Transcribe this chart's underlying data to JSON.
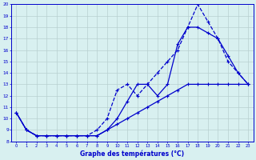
{
  "title": "Graphe des températures (°C)",
  "x_values": [
    0,
    1,
    2,
    3,
    4,
    5,
    6,
    7,
    8,
    9,
    10,
    11,
    12,
    13,
    14,
    15,
    16,
    17,
    18,
    19,
    20,
    21,
    22,
    23
  ],
  "line_dashed": [
    10.5,
    9.0,
    8.5,
    8.5,
    8.5,
    8.5,
    8.5,
    8.5,
    9.0,
    10.0,
    12.5,
    13.0,
    12.0,
    13.0,
    14.0,
    15.0,
    16.0,
    18.0,
    20.0,
    18.5,
    17.0,
    15.0,
    14.0,
    13.0
  ],
  "line_solid1": [
    10.5,
    9.0,
    8.5,
    8.5,
    8.5,
    8.5,
    8.5,
    8.5,
    8.5,
    9.0,
    10.0,
    11.5,
    13.0,
    13.0,
    12.0,
    13.0,
    16.5,
    18.0,
    18.0,
    17.5,
    17.0,
    15.5,
    14.0,
    13.0
  ],
  "line_solid2": [
    10.5,
    9.0,
    8.5,
    8.5,
    8.5,
    8.5,
    8.5,
    8.5,
    8.5,
    9.0,
    9.5,
    10.0,
    10.5,
    11.0,
    11.5,
    12.0,
    12.5,
    13.0,
    13.0,
    13.0,
    13.0,
    13.0,
    13.0,
    13.0
  ],
  "line_color": "#0000cc",
  "bg_color": "#d8f0f0",
  "grid_color": "#b8d0d0",
  "ylim": [
    8,
    20
  ],
  "xlim": [
    -0.5,
    23.5
  ],
  "ytick_vals": [
    8,
    9,
    10,
    11,
    12,
    13,
    14,
    15,
    16,
    17,
    18,
    19,
    20
  ],
  "xtick_vals": [
    0,
    1,
    2,
    3,
    4,
    5,
    6,
    7,
    8,
    9,
    10,
    11,
    12,
    13,
    14,
    15,
    16,
    17,
    18,
    19,
    20,
    21,
    22,
    23
  ]
}
